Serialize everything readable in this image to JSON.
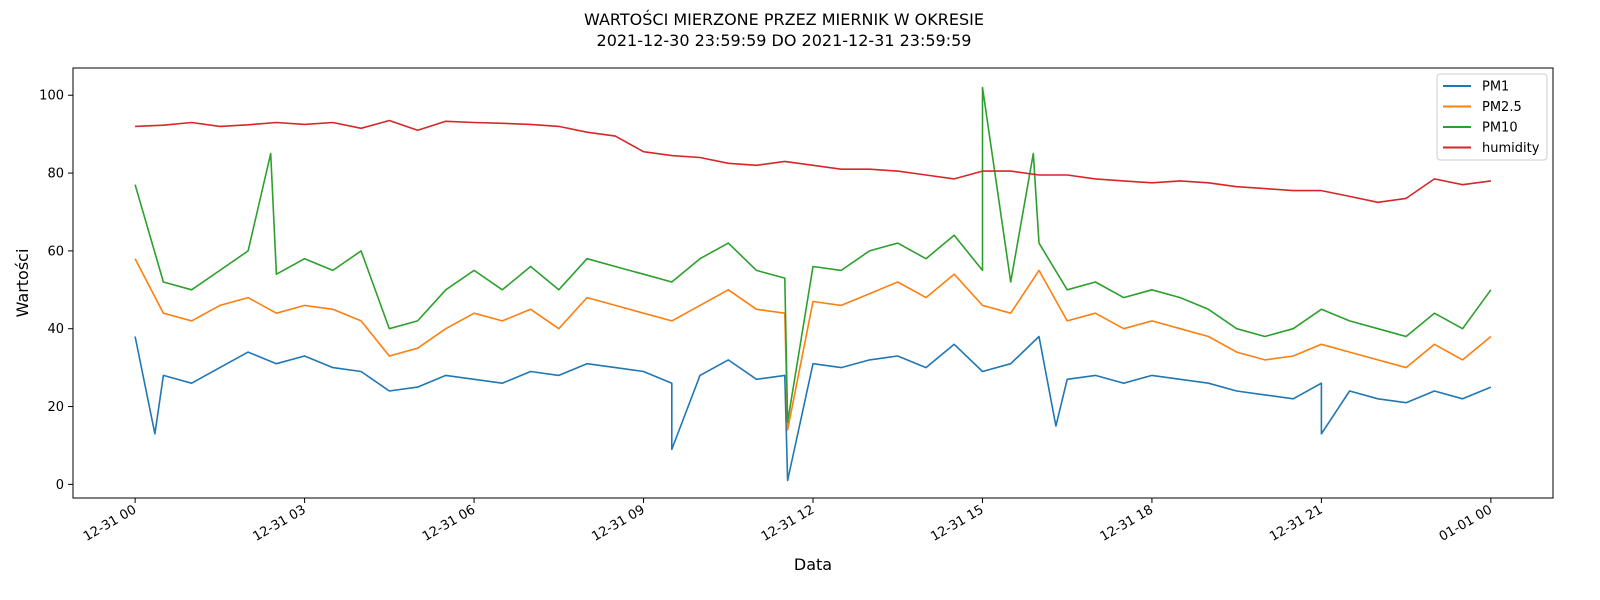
{
  "chart_data": {
    "type": "line",
    "title_line1": "WARTOŚCI MIERZONE PRZEZ MIERNIK W OKRESIE",
    "title_line2": "2021-12-30 23:59:59 DO 2021-12-31 23:59:59",
    "xlabel": "Data",
    "ylabel": "Wartości",
    "xlim_hours": [
      -1.1,
      25.1
    ],
    "ylim": [
      -3.5,
      107
    ],
    "xticks": [
      {
        "h": 0,
        "label": "12-31 00"
      },
      {
        "h": 3,
        "label": "12-31 03"
      },
      {
        "h": 6,
        "label": "12-31 06"
      },
      {
        "h": 9,
        "label": "12-31 09"
      },
      {
        "h": 12,
        "label": "12-31 12"
      },
      {
        "h": 15,
        "label": "12-31 15"
      },
      {
        "h": 18,
        "label": "12-31 18"
      },
      {
        "h": 21,
        "label": "12-31 21"
      },
      {
        "h": 24,
        "label": "01-01 00"
      }
    ],
    "yticks": [
      0,
      20,
      40,
      60,
      80,
      100
    ],
    "grid": false,
    "legend_position": "top-right",
    "x_hours": [
      0,
      0.5,
      1,
      1.5,
      2,
      2.5,
      3,
      3.5,
      4,
      4.5,
      5,
      5.5,
      6,
      6.5,
      7,
      7.5,
      8,
      8.5,
      9,
      9.5,
      10,
      10.5,
      11,
      11.5,
      12,
      12.5,
      13,
      13.5,
      14,
      14.5,
      15,
      15.5,
      16,
      16.5,
      17,
      17.5,
      18,
      18.5,
      19,
      19.5,
      20,
      20.5,
      21,
      21.5,
      22,
      22.5,
      23,
      23.5,
      24
    ],
    "series": [
      {
        "name": "PM1",
        "color": "#1f77b4",
        "values": [
          38,
          28,
          26,
          30,
          34,
          31,
          33,
          30,
          29,
          24,
          25,
          28,
          27,
          26,
          29,
          28,
          31,
          30,
          29,
          26,
          28,
          32,
          27,
          28,
          31,
          30,
          32,
          33,
          30,
          36,
          29,
          31,
          38,
          27,
          28,
          26,
          28,
          27,
          26,
          24,
          23,
          22,
          26,
          24,
          22,
          21,
          24,
          22,
          25
        ]
      },
      {
        "name": "PM2.5",
        "color": "#ff7f0e",
        "values": [
          58,
          44,
          42,
          46,
          48,
          44,
          46,
          45,
          42,
          33,
          35,
          40,
          44,
          42,
          45,
          40,
          48,
          46,
          44,
          42,
          46,
          50,
          45,
          44,
          47,
          46,
          49,
          52,
          48,
          54,
          46,
          44,
          55,
          42,
          44,
          40,
          42,
          40,
          38,
          34,
          32,
          33,
          36,
          34,
          32,
          30,
          36,
          32,
          38
        ]
      },
      {
        "name": "PM10",
        "color": "#2ca02c",
        "values": [
          77,
          52,
          50,
          55,
          60,
          54,
          58,
          55,
          60,
          40,
          42,
          50,
          55,
          50,
          56,
          50,
          58,
          56,
          54,
          52,
          58,
          62,
          55,
          53,
          56,
          55,
          60,
          62,
          58,
          64,
          55,
          52,
          62,
          50,
          52,
          48,
          50,
          48,
          45,
          40,
          38,
          40,
          45,
          42,
          40,
          38,
          44,
          40,
          50
        ]
      },
      {
        "name": "humidity",
        "color": "#d62728",
        "values": [
          92,
          92.3,
          93,
          92,
          92.4,
          93,
          92.5,
          93,
          91.5,
          93.5,
          91,
          93.3,
          93,
          92.8,
          92.5,
          92,
          90.5,
          89.5,
          85.5,
          84.5,
          84,
          82.5,
          82,
          83,
          82,
          81,
          81,
          80.5,
          79.5,
          78.5,
          80.5,
          80.5,
          79.5,
          79.5,
          78.5,
          78,
          77.5,
          78,
          77.5,
          76.5,
          76,
          75.5,
          75.5,
          74,
          72.5,
          73.5,
          78.5,
          77,
          78
        ]
      }
    ],
    "spikes": [
      {
        "series": "PM10",
        "h": 15.0,
        "value": 102
      },
      {
        "series": "PM10",
        "h": 2.4,
        "value": 85
      },
      {
        "series": "PM10",
        "h": 15.9,
        "value": 85
      },
      {
        "series": "PM1",
        "h": 11.55,
        "value": 1
      },
      {
        "series": "PM2.5",
        "h": 11.55,
        "value": 14
      },
      {
        "series": "PM10",
        "h": 11.55,
        "value": 16
      },
      {
        "series": "PM1",
        "h": 9.5,
        "value": 9
      },
      {
        "series": "PM1",
        "h": 0.35,
        "value": 13
      },
      {
        "series": "PM1",
        "h": 21.0,
        "value": 13
      },
      {
        "series": "PM1",
        "h": 16.3,
        "value": 15
      }
    ]
  }
}
